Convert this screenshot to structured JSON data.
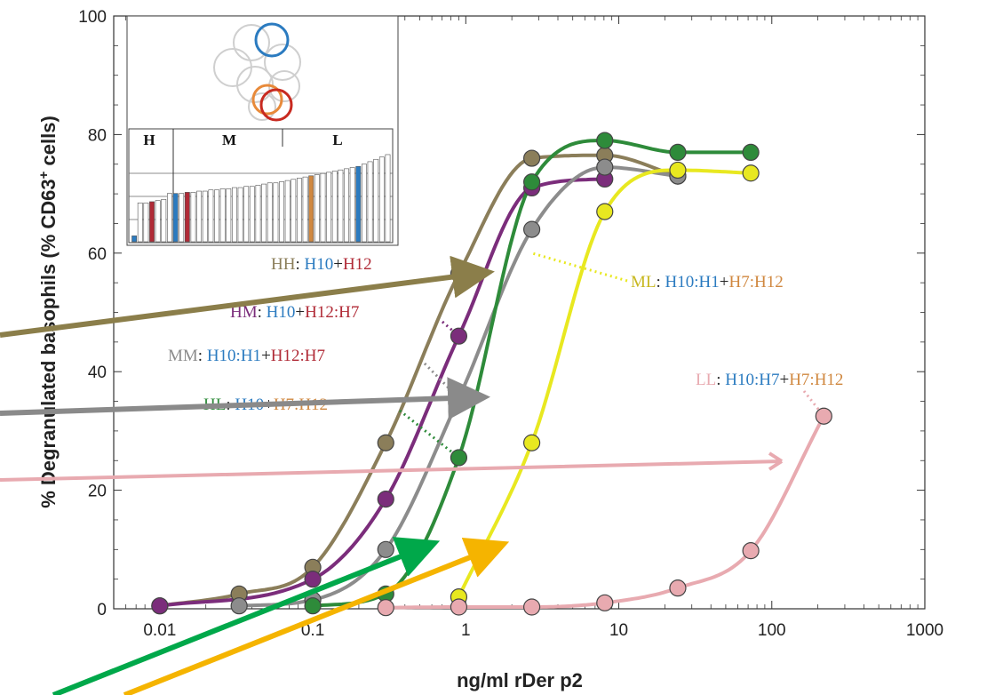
{
  "chart_data": {
    "type": "line",
    "xlabel": "ng/ml rDer p2",
    "ylabel_prefix": "% Degranulated basophils (% CD63",
    "ylabel_sup": "+",
    "ylabel_suffix": " cells)",
    "xscale": "log",
    "xlim": [
      0.005,
      1000
    ],
    "ylim": [
      0,
      100
    ],
    "x_ticks": [
      0.01,
      0.1,
      1,
      10,
      100,
      1000
    ],
    "x_tick_labels": [
      "0.01",
      "0.1",
      "1",
      "10",
      "100",
      "1000"
    ],
    "y_ticks": [
      0,
      20,
      40,
      60,
      80,
      100
    ],
    "y_tick_labels": [
      "0",
      "20",
      "40",
      "60",
      "80",
      "100"
    ],
    "grid": false,
    "series": [
      {
        "name": "HH",
        "color": "#8b7e5a",
        "x": [
          0.01,
          0.033,
          0.1,
          0.3,
          0.9,
          2.7,
          8.1,
          24.3
        ],
        "y": [
          0.5,
          2.5,
          7,
          28,
          56.5,
          76,
          76.5,
          73
        ]
      },
      {
        "name": "HM",
        "color": "#7b2d7b",
        "x": [
          0.01,
          0.1,
          0.3,
          0.9,
          2.7,
          8.1
        ],
        "y": [
          0.5,
          5,
          18.5,
          46,
          71,
          72.5
        ]
      },
      {
        "name": "MM",
        "color": "#8c8c8c",
        "x": [
          0.033,
          0.1,
          0.3,
          0.9,
          2.7,
          8.1,
          24.3
        ],
        "y": [
          0.5,
          1.5,
          10,
          35.5,
          64,
          74.5,
          73
        ]
      },
      {
        "name": "HL",
        "color": "#2e8b3a",
        "x": [
          0.1,
          0.3,
          0.9,
          2.7,
          8.1,
          24.3,
          72.9
        ],
        "y": [
          0.5,
          2.5,
          25.5,
          72,
          79,
          77,
          77
        ]
      },
      {
        "name": "ML",
        "color": "#e8e820",
        "x": [
          0.9,
          2.7,
          8.1,
          24.3,
          72.9
        ],
        "y": [
          2,
          28,
          67,
          74,
          73.5
        ]
      },
      {
        "name": "LL",
        "color": "#e8aab0",
        "x": [
          0.3,
          0.9,
          2.7,
          8.1,
          24.3,
          72.9,
          218.7
        ],
        "y": [
          0.2,
          0.3,
          0.3,
          1,
          3.5,
          9.8,
          32.5
        ]
      }
    ],
    "annotations": [
      {
        "id": "ann-hh",
        "parts": [
          [
            "HH",
            "#8b7e5a"
          ],
          [
            ": ",
            "#222222"
          ],
          [
            "H10",
            "#2b7bc0"
          ],
          [
            "+",
            "#222222"
          ],
          [
            "H12",
            "#b02a36"
          ]
        ]
      },
      {
        "id": "ann-hm",
        "parts": [
          [
            "HM",
            "#7b2d7b"
          ],
          [
            ": ",
            "#222222"
          ],
          [
            "H10",
            "#2b7bc0"
          ],
          [
            "+",
            "#222222"
          ],
          [
            "H12:H7",
            "#b02a36"
          ]
        ]
      },
      {
        "id": "ann-mm",
        "parts": [
          [
            "MM",
            "#8c8c8c"
          ],
          [
            ": ",
            "#222222"
          ],
          [
            "H10:H1",
            "#2b7bc0"
          ],
          [
            "+",
            "#222222"
          ],
          [
            "H12:H7",
            "#b02a36"
          ]
        ]
      },
      {
        "id": "ann-hl",
        "parts": [
          [
            "HL",
            "#2e8b3a"
          ],
          [
            ": ",
            "#222222"
          ],
          [
            "H10",
            "#2b7bc0"
          ],
          [
            "+",
            "#222222"
          ],
          [
            "H7:H12",
            "#d08840"
          ]
        ]
      },
      {
        "id": "ann-ml",
        "parts": [
          [
            "ML",
            "#c8b820"
          ],
          [
            ": ",
            "#222222"
          ],
          [
            "H10:H1",
            "#2b7bc0"
          ],
          [
            "+",
            "#222222"
          ],
          [
            "H7:H12",
            "#d08840"
          ]
        ]
      },
      {
        "id": "ann-ll",
        "parts": [
          [
            "LL",
            "#e8aab0"
          ],
          [
            ": ",
            "#222222"
          ],
          [
            "H10:H7",
            "#2b7bc0"
          ],
          [
            "+",
            "#222222"
          ],
          [
            "H7:H12",
            "#d08840"
          ]
        ]
      }
    ],
    "inset": {
      "group_labels": [
        "H",
        "M",
        "L"
      ],
      "bars": [
        0.05,
        0.33,
        0.33,
        0.34,
        0.35,
        0.36,
        0.41,
        0.41,
        0.41,
        0.42,
        0.42,
        0.43,
        0.43,
        0.44,
        0.44,
        0.45,
        0.45,
        0.46,
        0.46,
        0.47,
        0.47,
        0.48,
        0.49,
        0.5,
        0.5,
        0.51,
        0.52,
        0.53,
        0.54,
        0.55,
        0.56,
        0.57,
        0.58,
        0.59,
        0.6,
        0.61,
        0.62,
        0.63,
        0.64,
        0.66,
        0.68,
        0.7,
        0.72,
        0.74
      ],
      "bar_colors": {
        "0": "#2b7bc0",
        "3": "#b02a36",
        "7": "#2b7bc0",
        "9": "#b02a36",
        "30": "#d08840",
        "38": "#2b7bc0"
      }
    }
  }
}
